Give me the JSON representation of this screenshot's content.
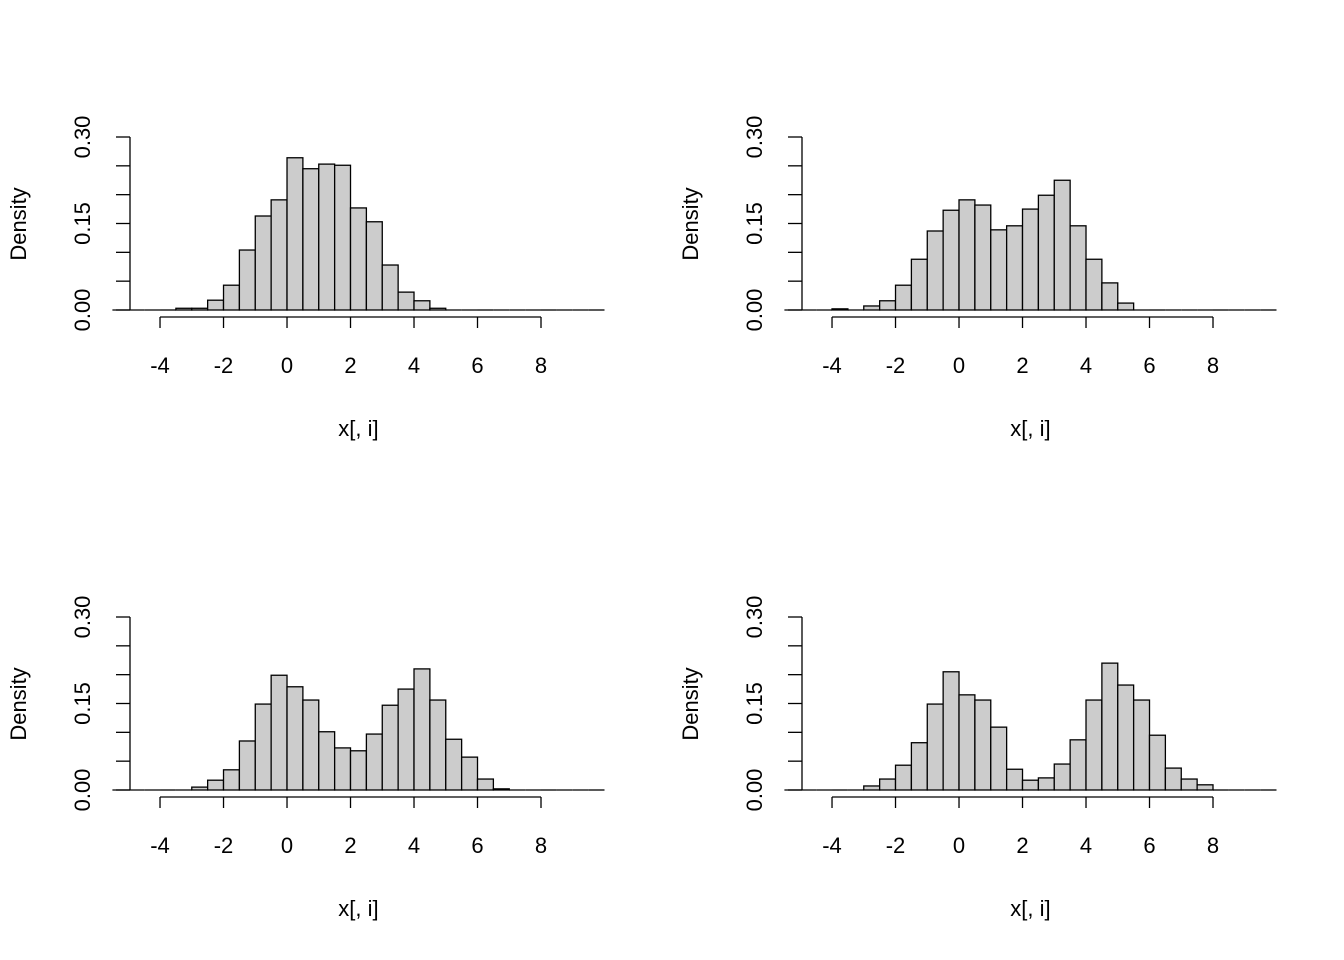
{
  "chart_data": [
    {
      "type": "histogram",
      "xlabel": "x[, i]",
      "ylabel": "Density",
      "color": "#cccccc",
      "bins": [
        -5.5,
        -5,
        -4.5,
        -4,
        -3.5,
        -3,
        -2.5,
        -2,
        -1.5,
        -1,
        -0.5,
        0,
        0.5,
        1,
        1.5,
        2,
        2.5,
        3,
        3.5,
        4,
        4.5,
        5,
        5.5,
        6,
        6.5,
        7,
        7.5,
        8,
        8.5,
        9,
        9.5,
        10
      ],
      "values": [
        0,
        0,
        0,
        0,
        0.003,
        0.003,
        0.017,
        0.043,
        0.104,
        0.163,
        0.191,
        0.264,
        0.245,
        0.253,
        0.251,
        0.177,
        0.153,
        0.078,
        0.031,
        0.016,
        0.003,
        0,
        0,
        0,
        0,
        0,
        0,
        0,
        0,
        0,
        0
      ],
      "xlim": [
        -5.5,
        10
      ],
      "xticks": [
        -4,
        -2,
        0,
        2,
        4,
        6,
        8
      ],
      "ylim": [
        0,
        0.3
      ],
      "yticks": [
        {
          "value": 0,
          "label": "0.00"
        },
        0.15,
        {
          "value": 0.3,
          "label": "0.30"
        }
      ],
      "yminor_ticks": [
        0.05,
        0.1,
        0.2,
        0.25
      ]
    },
    {
      "type": "histogram",
      "xlabel": "x[, i]",
      "ylabel": "Density",
      "color": "#cccccc",
      "bins": [
        -5.5,
        -5,
        -4.5,
        -4,
        -3.5,
        -3,
        -2.5,
        -2,
        -1.5,
        -1,
        -0.5,
        0,
        0.5,
        1,
        1.5,
        2,
        2.5,
        3,
        3.5,
        4,
        4.5,
        5,
        5.5,
        6,
        6.5,
        7,
        7.5,
        8,
        8.5,
        9,
        9.5,
        10
      ],
      "values": [
        0,
        0,
        0,
        0.002,
        0,
        0.007,
        0.016,
        0.043,
        0.088,
        0.137,
        0.173,
        0.191,
        0.182,
        0.139,
        0.146,
        0.175,
        0.199,
        0.225,
        0.146,
        0.088,
        0.047,
        0.012,
        0,
        0,
        0,
        0,
        0,
        0,
        0,
        0,
        0
      ],
      "xlim": [
        -5.5,
        10
      ],
      "xticks": [
        -4,
        -2,
        0,
        2,
        4,
        6,
        8
      ],
      "ylim": [
        0,
        0.3
      ],
      "yticks": [
        {
          "value": 0,
          "label": "0.00"
        },
        0.15,
        {
          "value": 0.3,
          "label": "0.30"
        }
      ],
      "yminor_ticks": [
        0.05,
        0.1,
        0.2,
        0.25
      ]
    },
    {
      "type": "histogram",
      "xlabel": "x[, i]",
      "ylabel": "Density",
      "color": "#cccccc",
      "bins": [
        -5.5,
        -5,
        -4.5,
        -4,
        -3.5,
        -3,
        -2.5,
        -2,
        -1.5,
        -1,
        -0.5,
        0,
        0.5,
        1,
        1.5,
        2,
        2.5,
        3,
        3.5,
        4,
        4.5,
        5,
        5.5,
        6,
        6.5,
        7,
        7.5,
        8,
        8.5,
        9,
        9.5,
        10
      ],
      "values": [
        0,
        0,
        0,
        0,
        0,
        0.005,
        0.017,
        0.035,
        0.085,
        0.149,
        0.199,
        0.179,
        0.156,
        0.101,
        0.073,
        0.068,
        0.097,
        0.147,
        0.175,
        0.21,
        0.156,
        0.088,
        0.057,
        0.019,
        0.002,
        0,
        0,
        0,
        0,
        0,
        0
      ],
      "xlim": [
        -5.5,
        10
      ],
      "xticks": [
        -4,
        -2,
        0,
        2,
        4,
        6,
        8
      ],
      "ylim": [
        0,
        0.3
      ],
      "yticks": [
        {
          "value": 0,
          "label": "0.00"
        },
        0.15,
        {
          "value": 0.3,
          "label": "0.30"
        }
      ],
      "yminor_ticks": [
        0.05,
        0.1,
        0.2,
        0.25
      ]
    },
    {
      "type": "histogram",
      "xlabel": "x[, i]",
      "ylabel": "Density",
      "color": "#cccccc",
      "bins": [
        -5.5,
        -5,
        -4.5,
        -4,
        -3.5,
        -3,
        -2.5,
        -2,
        -1.5,
        -1,
        -0.5,
        0,
        0.5,
        1,
        1.5,
        2,
        2.5,
        3,
        3.5,
        4,
        4.5,
        5,
        5.5,
        6,
        6.5,
        7,
        7.5,
        8,
        8.5,
        9,
        9.5,
        10
      ],
      "values": [
        0,
        0,
        0,
        0,
        0,
        0.007,
        0.019,
        0.043,
        0.082,
        0.149,
        0.205,
        0.165,
        0.156,
        0.109,
        0.036,
        0.017,
        0.021,
        0.045,
        0.087,
        0.156,
        0.22,
        0.182,
        0.156,
        0.095,
        0.038,
        0.019,
        0.009,
        0,
        0,
        0,
        0
      ],
      "xlim": [
        -5.5,
        10
      ],
      "xticks": [
        -4,
        -2,
        0,
        2,
        4,
        6,
        8
      ],
      "ylim": [
        0,
        0.3
      ],
      "yticks": [
        {
          "value": 0,
          "label": "0.00"
        },
        0.15,
        {
          "value": 0.3,
          "label": "0.30"
        }
      ],
      "yminor_ticks": [
        0.05,
        0.1,
        0.2,
        0.25
      ]
    }
  ]
}
